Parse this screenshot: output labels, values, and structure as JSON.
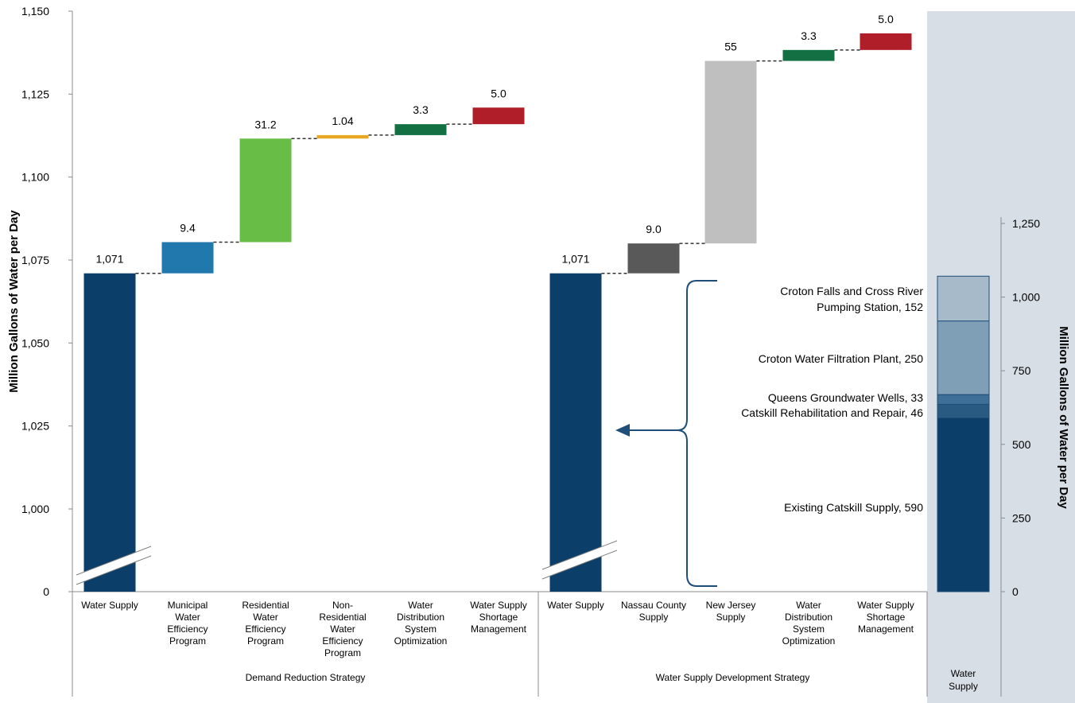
{
  "chart_data": {
    "type": "waterfall",
    "ylabel_left": "Million Gallons of Water per Day",
    "ylabel_right": "Million Gallons of Water per Day",
    "left_axis_ticks": [
      "1,150",
      "1,125",
      "1,100",
      "1,075",
      "1,050",
      "1,025",
      "1,000",
      "0"
    ],
    "ylim_left": [
      975,
      1150
    ],
    "axis_break": true,
    "groups": [
      {
        "label": "Demand Reduction Strategy",
        "steps": [
          {
            "category": "Water Supply",
            "value": 1071,
            "label": "1,071",
            "kind": "base",
            "color": "#0b3f69"
          },
          {
            "category": "Municipal Water Efficiency Program",
            "value": 9.4,
            "label": "9.4",
            "kind": "delta",
            "color": "#2178ac"
          },
          {
            "category": "Residential Water Efficiency Program",
            "value": 31.2,
            "label": "31.2",
            "kind": "delta",
            "color": "#67bd45"
          },
          {
            "category": "Non-Residential Water Efficiency Program",
            "value": 1.04,
            "label": "1.04",
            "kind": "delta",
            "color": "#e8a623"
          },
          {
            "category": "Water Distribution System Optimization",
            "value": 3.3,
            "label": "3.3",
            "kind": "delta",
            "color": "#137043"
          },
          {
            "category": "Water Supply Shortage Management",
            "value": 5.0,
            "label": "5.0",
            "kind": "delta",
            "color": "#b01e2a"
          }
        ]
      },
      {
        "label": "Water Supply Development Strategy",
        "steps": [
          {
            "category": "Water Supply",
            "value": 1071,
            "label": "1,071",
            "kind": "base",
            "color": "#0b3f69"
          },
          {
            "category": "Nassau County Supply",
            "value": 9.0,
            "label": "9.0",
            "kind": "delta",
            "color": "#595959"
          },
          {
            "category": "New Jersey Supply",
            "value": 55,
            "label": "55",
            "kind": "delta",
            "color": "#bfbfbf"
          },
          {
            "category": "Water Distribution System Optimization",
            "value": 3.3,
            "label": "3.3",
            "kind": "delta",
            "color": "#137043"
          },
          {
            "category": "Water Supply Shortage Management",
            "value": 5.0,
            "label": "5.0",
            "kind": "delta",
            "color": "#b01e2a"
          }
        ]
      }
    ],
    "supply_breakdown": {
      "category": "Water Supply",
      "right_axis_ticks": [
        "1,250",
        "1,000",
        "750",
        "500",
        "250",
        "0"
      ],
      "ylim_right": [
        0,
        1250
      ],
      "components": [
        {
          "label": "Existing Catskill Supply, 590",
          "value": 590,
          "color": "#0b3f69"
        },
        {
          "label": "Catskill Rehabilitation and Repair, 46",
          "value": 46,
          "color": "#285a82"
        },
        {
          "label": "Queens Groundwater Wells, 33",
          "value": 33,
          "color": "#3e6f97"
        },
        {
          "label": "Croton Water Filtration Plant, 250",
          "value": 250,
          "color": "#7f9fb6"
        },
        {
          "label": "Croton Falls and Cross River Pumping Station, 152",
          "value": 152,
          "color": "#a6bac9"
        }
      ]
    }
  }
}
